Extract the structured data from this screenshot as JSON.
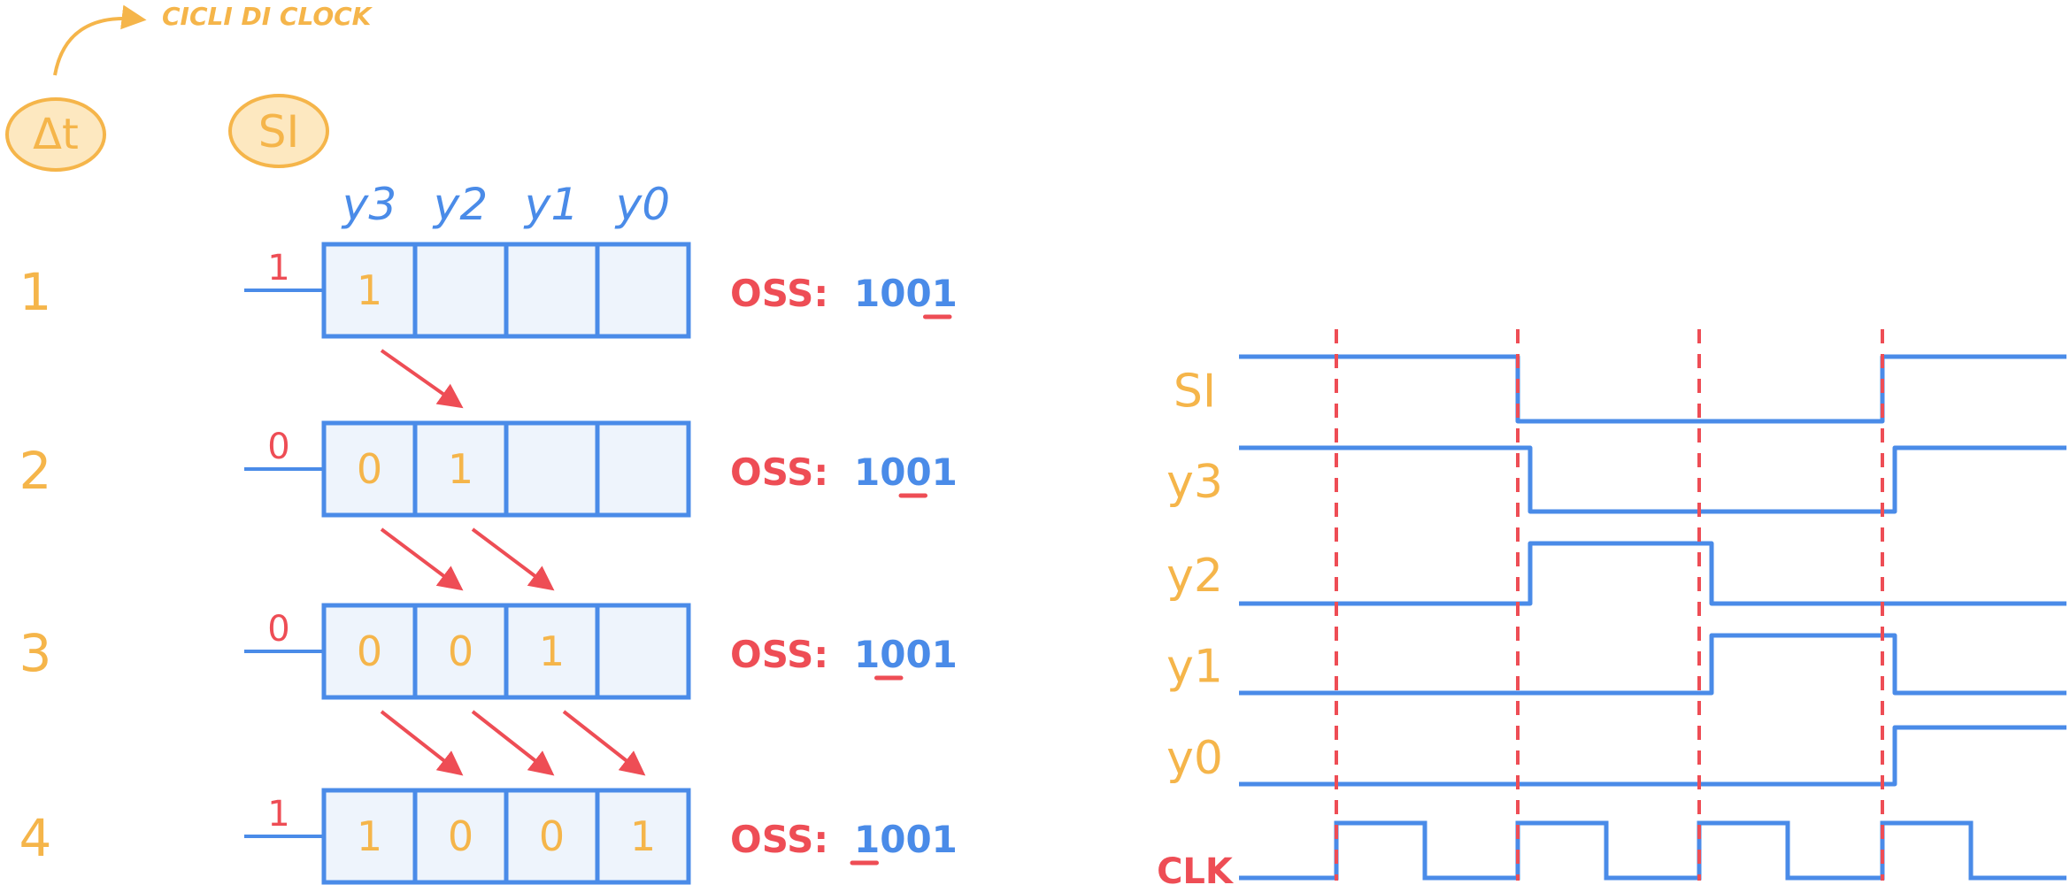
{
  "colors": {
    "orange": "#f5b54a",
    "blue": "#4a8be8",
    "red": "#ee4d55",
    "cell_fill": "#eef4fc"
  },
  "header": {
    "annotation": "CICLI DI CLOCK",
    "delta_t_label": "Δt",
    "serial_input_label": "SI"
  },
  "register": {
    "column_headers": [
      "y3",
      "y2",
      "y1",
      "y0"
    ]
  },
  "steps": [
    {
      "cycle": "1",
      "input": "1",
      "cells": [
        "1",
        "",
        "",
        ""
      ],
      "oss_label": "OSS:",
      "oss_value": "1001"
    },
    {
      "cycle": "2",
      "input": "0",
      "cells": [
        "0",
        "1",
        "",
        ""
      ],
      "oss_label": "OSS:",
      "oss_value": "1001"
    },
    {
      "cycle": "3",
      "input": "0",
      "cells": [
        "0",
        "0",
        "1",
        ""
      ],
      "oss_label": "OSS:",
      "oss_value": "1001"
    },
    {
      "cycle": "4",
      "input": "1",
      "cells": [
        "1",
        "0",
        "0",
        "1"
      ],
      "oss_label": "OSS:",
      "oss_value": "1001"
    }
  ],
  "timing": {
    "signals": [
      {
        "name": "SI",
        "levels": [
          "1",
          "0",
          "0",
          "1"
        ]
      },
      {
        "name": "y3",
        "levels": [
          "1",
          "0",
          "0",
          "1"
        ]
      },
      {
        "name": "y2",
        "levels": [
          "0",
          "1",
          "0",
          "0"
        ]
      },
      {
        "name": "y1",
        "levels": [
          "0",
          "0",
          "1",
          "0"
        ]
      },
      {
        "name": "y0",
        "levels": [
          "0",
          "0",
          "0",
          "1"
        ]
      }
    ],
    "clock_label": "CLK"
  }
}
